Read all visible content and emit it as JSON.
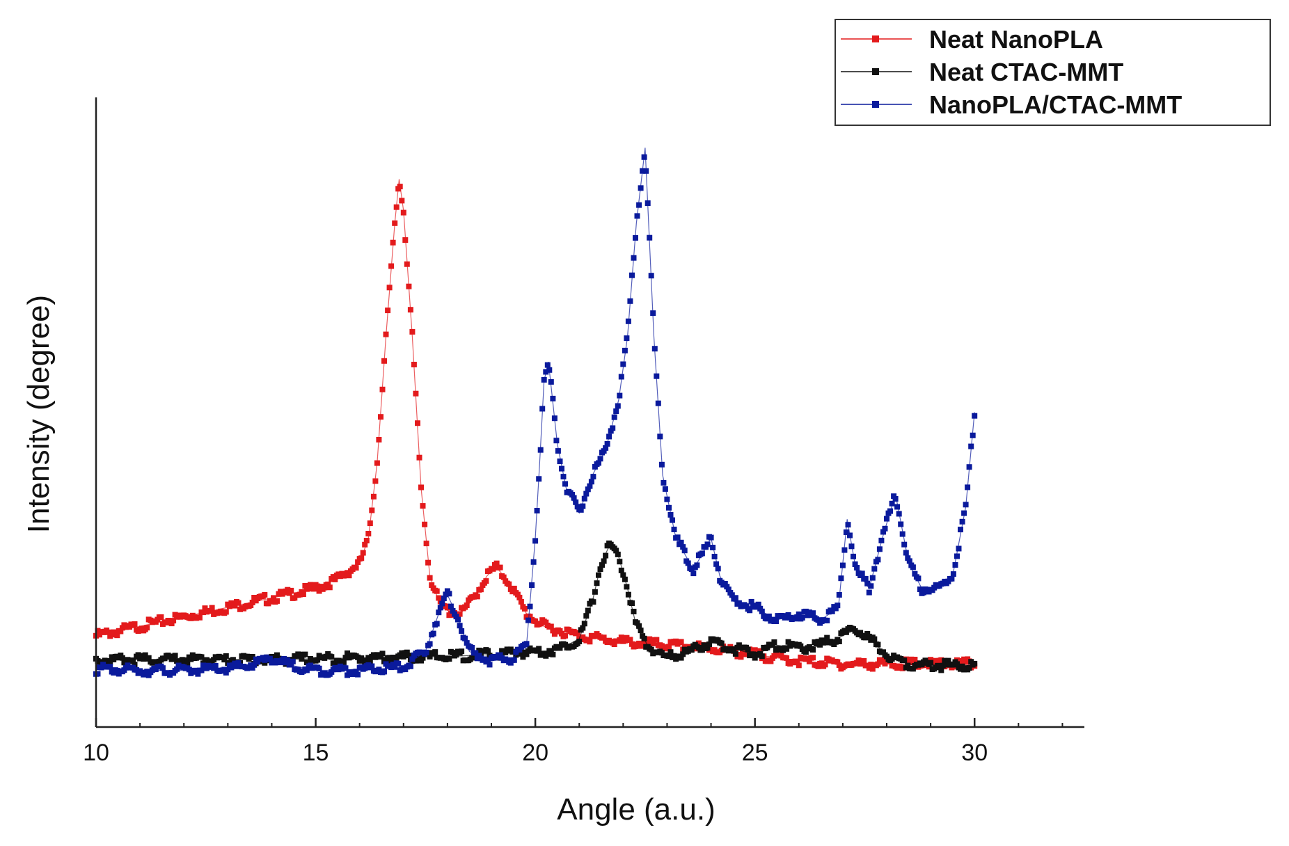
{
  "chart_data": {
    "type": "scatter",
    "title": "",
    "xlabel": "Angle (a.u.)",
    "ylabel": "Intensity (degree)",
    "xlim": [
      10,
      32.5
    ],
    "ylim": [
      0,
      1
    ],
    "x_ticks": [
      10,
      15,
      20,
      25,
      30
    ],
    "x_tick_labels": [
      "10",
      "15",
      "20",
      "25",
      "30"
    ],
    "y_ticks_visible": false,
    "grid": false,
    "legend_position": "top-right",
    "series": [
      {
        "name": "Neat NanoPLA",
        "color": "#e31a1c",
        "marker": "square",
        "points": [
          [
            10,
            0.145
          ],
          [
            11,
            0.16
          ],
          [
            12,
            0.175
          ],
          [
            13,
            0.19
          ],
          [
            14,
            0.205
          ],
          [
            15,
            0.22
          ],
          [
            15.5,
            0.235
          ],
          [
            16,
            0.26
          ],
          [
            16.2,
            0.3
          ],
          [
            16.4,
            0.42
          ],
          [
            16.6,
            0.62
          ],
          [
            16.8,
            0.8
          ],
          [
            16.9,
            0.87
          ],
          [
            17.0,
            0.82
          ],
          [
            17.2,
            0.62
          ],
          [
            17.4,
            0.38
          ],
          [
            17.6,
            0.24
          ],
          [
            17.8,
            0.2
          ],
          [
            18.0,
            0.185
          ],
          [
            18.3,
            0.18
          ],
          [
            18.6,
            0.205
          ],
          [
            18.9,
            0.24
          ],
          [
            19.1,
            0.255
          ],
          [
            19.4,
            0.23
          ],
          [
            19.8,
            0.18
          ],
          [
            20.2,
            0.16
          ],
          [
            21,
            0.145
          ],
          [
            22,
            0.135
          ],
          [
            23,
            0.13
          ],
          [
            24,
            0.125
          ],
          [
            25,
            0.115
          ],
          [
            26,
            0.105
          ],
          [
            27,
            0.1
          ],
          [
            28,
            0.1
          ],
          [
            29,
            0.1
          ],
          [
            30,
            0.1
          ]
        ]
      },
      {
        "name": "Neat CTAC-MMT",
        "color": "#111111",
        "marker": "square",
        "points": [
          [
            10,
            0.107
          ],
          [
            12,
            0.107
          ],
          [
            14,
            0.107
          ],
          [
            16,
            0.11
          ],
          [
            18,
            0.112
          ],
          [
            19,
            0.115
          ],
          [
            20,
            0.12
          ],
          [
            20.5,
            0.122
          ],
          [
            21,
            0.14
          ],
          [
            21.3,
            0.2
          ],
          [
            21.5,
            0.26
          ],
          [
            21.7,
            0.29
          ],
          [
            21.9,
            0.27
          ],
          [
            22.1,
            0.22
          ],
          [
            22.3,
            0.16
          ],
          [
            22.6,
            0.125
          ],
          [
            23,
            0.11
          ],
          [
            23.5,
            0.12
          ],
          [
            24,
            0.135
          ],
          [
            24.5,
            0.125
          ],
          [
            25,
            0.115
          ],
          [
            25.5,
            0.13
          ],
          [
            26,
            0.125
          ],
          [
            26.5,
            0.13
          ],
          [
            27,
            0.145
          ],
          [
            27.3,
            0.155
          ],
          [
            27.6,
            0.14
          ],
          [
            28,
            0.115
          ],
          [
            28.5,
            0.1
          ],
          [
            29,
            0.098
          ],
          [
            30,
            0.098
          ]
        ]
      },
      {
        "name": "NanoPLA/CTAC-MMT",
        "color": "#0a1a9c",
        "marker": "square",
        "points": [
          [
            10,
            0.092
          ],
          [
            11,
            0.09
          ],
          [
            12,
            0.09
          ],
          [
            13,
            0.092
          ],
          [
            13.5,
            0.098
          ],
          [
            14,
            0.11
          ],
          [
            14.3,
            0.1
          ],
          [
            15,
            0.09
          ],
          [
            16,
            0.09
          ],
          [
            17,
            0.095
          ],
          [
            17.5,
            0.12
          ],
          [
            17.8,
            0.18
          ],
          [
            18.0,
            0.21
          ],
          [
            18.2,
            0.18
          ],
          [
            18.5,
            0.12
          ],
          [
            19,
            0.105
          ],
          [
            19.5,
            0.11
          ],
          [
            19.8,
            0.13
          ],
          [
            20.0,
            0.3
          ],
          [
            20.1,
            0.42
          ],
          [
            20.2,
            0.55
          ],
          [
            20.3,
            0.58
          ],
          [
            20.5,
            0.45
          ],
          [
            20.7,
            0.38
          ],
          [
            21,
            0.34
          ],
          [
            21.3,
            0.4
          ],
          [
            21.6,
            0.44
          ],
          [
            21.9,
            0.52
          ],
          [
            22.1,
            0.62
          ],
          [
            22.3,
            0.8
          ],
          [
            22.5,
            0.92
          ],
          [
            22.7,
            0.62
          ],
          [
            22.9,
            0.4
          ],
          [
            23.2,
            0.3
          ],
          [
            23.6,
            0.25
          ],
          [
            24.0,
            0.3
          ],
          [
            24.2,
            0.24
          ],
          [
            24.5,
            0.2
          ],
          [
            25,
            0.19
          ],
          [
            25.5,
            0.17
          ],
          [
            26,
            0.18
          ],
          [
            26.5,
            0.17
          ],
          [
            26.9,
            0.19
          ],
          [
            27.1,
            0.33
          ],
          [
            27.3,
            0.25
          ],
          [
            27.6,
            0.22
          ],
          [
            27.9,
            0.3
          ],
          [
            28.2,
            0.37
          ],
          [
            28.5,
            0.26
          ],
          [
            28.8,
            0.22
          ],
          [
            29.2,
            0.22
          ],
          [
            29.5,
            0.24
          ],
          [
            29.8,
            0.35
          ],
          [
            30.0,
            0.5
          ]
        ]
      }
    ]
  }
}
